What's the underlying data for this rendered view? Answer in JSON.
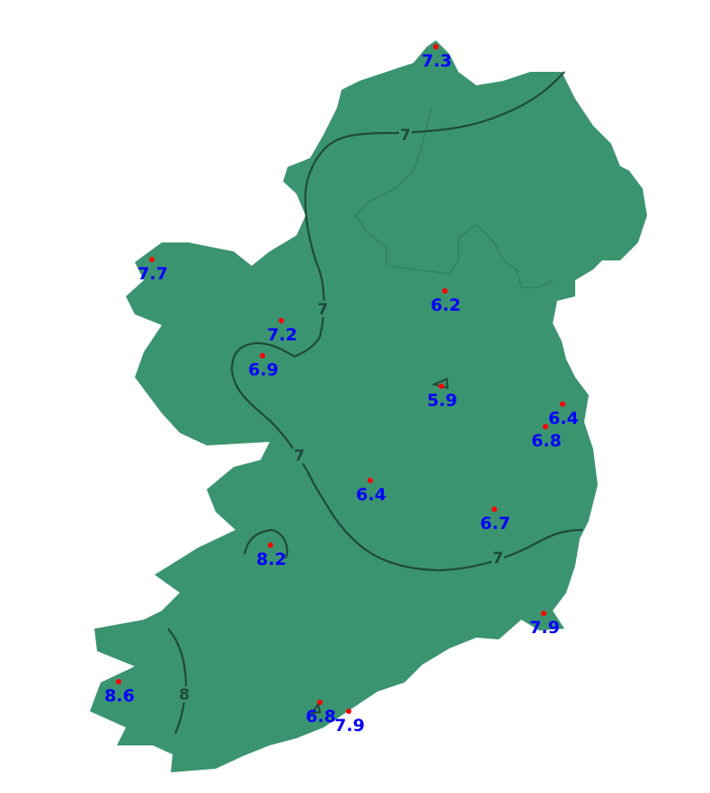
{
  "map": {
    "land_color": "#3b9470",
    "contour_color": "#1f4a3a",
    "value_color": "#0000ff",
    "station_marker_color": "#ff0000",
    "contour_labels": [
      "7",
      "7",
      "7",
      "7",
      "8"
    ],
    "stations": [
      {
        "value": "7.3"
      },
      {
        "value": "7.7"
      },
      {
        "value": "6.2"
      },
      {
        "value": "7.2"
      },
      {
        "value": "6.9"
      },
      {
        "value": "5.9"
      },
      {
        "value": "6.4"
      },
      {
        "value": "6.8"
      },
      {
        "value": "6.4"
      },
      {
        "value": "6.7"
      },
      {
        "value": "8.2"
      },
      {
        "value": "7.9"
      },
      {
        "value": "8.6"
      },
      {
        "value": "6.8"
      },
      {
        "value": "7.9"
      }
    ]
  }
}
